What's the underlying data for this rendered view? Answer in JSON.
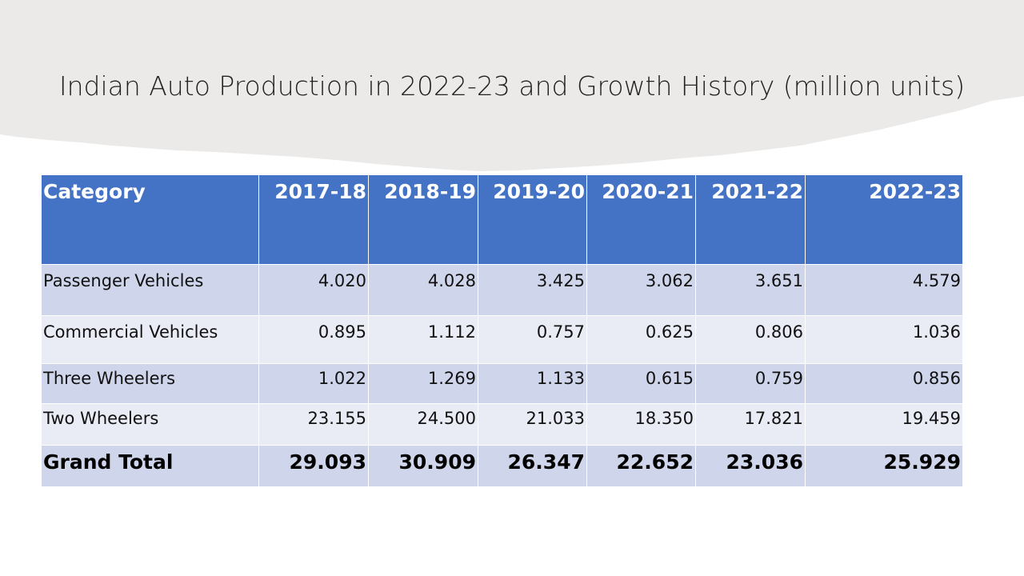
{
  "slide": {
    "title": "Indian Auto Production in 2022-23 and Growth History (million units)"
  },
  "colors": {
    "header_bg": "#4472c4",
    "row_band_dark": "#cfd5ea",
    "row_band_light": "#e9ebf5",
    "banner_bg": "#ebeae8"
  },
  "table": {
    "headers": [
      "Category",
      "2017-18",
      "2018-19",
      "2019-20",
      "2020-21",
      "2021-22",
      "2022-23"
    ],
    "rows": [
      [
        "Passenger Vehicles",
        "4.020",
        "4.028",
        "3.425",
        "3.062",
        "3.651",
        "4.579"
      ],
      [
        "Commercial Vehicles",
        "0.895",
        "1.112",
        "0.757",
        "0.625",
        "0.806",
        "1.036"
      ],
      [
        "Three Wheelers",
        "1.022",
        "1.269",
        "1.133",
        "0.615",
        "0.759",
        "0.856"
      ],
      [
        "Two Wheelers",
        "23.155",
        "24.500",
        "21.033",
        "18.350",
        "17.821",
        "19.459"
      ],
      [
        "Grand Total",
        "29.093",
        "30.909",
        "26.347",
        "22.652",
        "23.036",
        "25.929"
      ]
    ]
  }
}
